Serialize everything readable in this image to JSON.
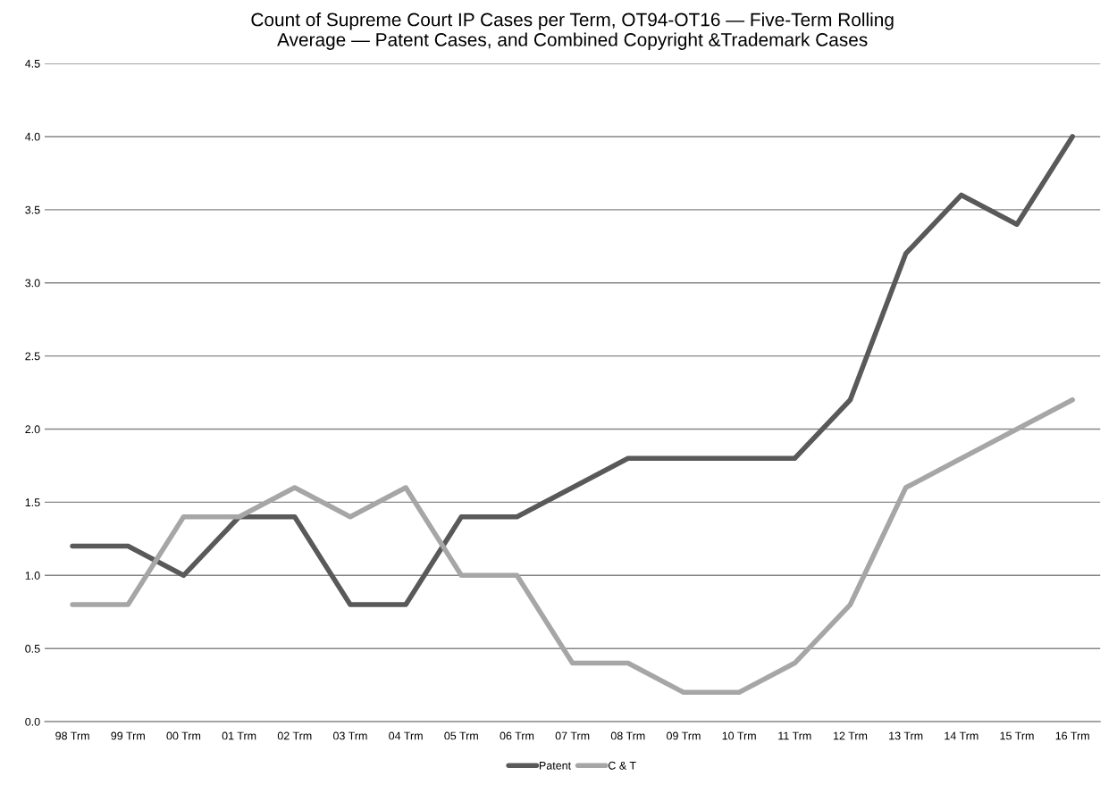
{
  "chart_data": {
    "type": "line",
    "title": "Count of Supreme Court IP Cases per Term, OT94-OT16 — Five-Term Rolling\nAverage — Patent Cases, and Combined Copyright &Trademark Cases",
    "categories": [
      "98 Trm",
      "99 Trm",
      "00 Trm",
      "01 Trm",
      "02 Trm",
      "03 Trm",
      "04 Trm",
      "05 Trm",
      "06 Trm",
      "07 Trm",
      "08 Trm",
      "09 Trm",
      "10 Trm",
      "11 Trm",
      "12 Trm",
      "13 Trm",
      "14 Trm",
      "15 Trm",
      "16 Trm"
    ],
    "series": [
      {
        "name": "Patent",
        "color": "#595959",
        "values": [
          1.2,
          1.2,
          1.0,
          1.4,
          1.4,
          0.8,
          0.8,
          1.4,
          1.4,
          1.6,
          1.8,
          1.8,
          1.8,
          1.8,
          2.2,
          3.2,
          3.6,
          3.4,
          4.0
        ]
      },
      {
        "name": "C & T",
        "color": "#a6a6a6",
        "values": [
          0.8,
          0.8,
          1.4,
          1.4,
          1.6,
          1.4,
          1.6,
          1.0,
          1.0,
          0.4,
          0.4,
          0.2,
          0.2,
          0.4,
          0.8,
          1.6,
          1.8,
          2.0,
          2.2
        ]
      }
    ],
    "ylim": [
      0,
      4.5
    ],
    "yticks": [
      {
        "value": 0,
        "label": "0.0"
      },
      {
        "value": 0.5,
        "label": "0.5"
      },
      {
        "value": 1,
        "label": "1.0"
      },
      {
        "value": 1.5,
        "label": "1.5"
      },
      {
        "value": 2,
        "label": "2.0"
      },
      {
        "value": 2.5,
        "label": "2.5"
      },
      {
        "value": 3,
        "label": "3.0"
      },
      {
        "value": 3.5,
        "label": "3.5"
      },
      {
        "value": 4,
        "label": "4.0"
      },
      {
        "value": 4.5,
        "label": "4.5"
      }
    ],
    "grid": "y",
    "legend": "bottom",
    "marker": "none",
    "line_style": "solid"
  }
}
